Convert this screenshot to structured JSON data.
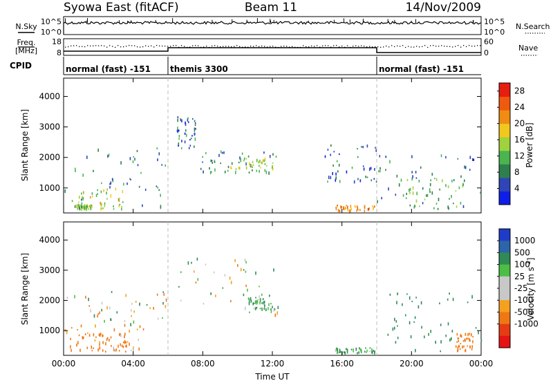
{
  "title": {
    "station": "Syowa East (fitACF)",
    "beam": "Beam 11",
    "date": "14/Nov/2009"
  },
  "panels": {
    "nsky": {
      "label": "N.Sky",
      "tick_top": "10^5",
      "tick_bottom": "10^0",
      "right_label": "N.Search",
      "right_tick_top": "10^5",
      "right_tick_bottom": "10^0",
      "right_legend_style": "dotted"
    },
    "freq": {
      "label_line1": "Freq.",
      "label_line2": "[MHz]",
      "tick_top": "18",
      "tick_bottom": "8",
      "right_label": "Nave",
      "right_tick_top": "60",
      "right_tick_bottom": "0",
      "right_legend_style": "dotted"
    },
    "cpid": {
      "label": "CPID",
      "segments": [
        {
          "name": "normal (fast) -151",
          "start_hour": 0,
          "end_hour": 6
        },
        {
          "name": "themis 3300",
          "start_hour": 6,
          "end_hour": 18
        },
        {
          "name": "normal (fast) -151",
          "start_hour": 18,
          "end_hour": 24
        }
      ]
    }
  },
  "chart_data": [
    {
      "type": "heatmap",
      "quantity": "power",
      "ylabel": "Slant Range [km]",
      "xlabel": "",
      "x_range_hours": [
        0,
        24
      ],
      "ylim": [
        180,
        4600
      ],
      "yticks": [
        1000,
        2000,
        3000,
        4000
      ],
      "xticks_hours": [
        0,
        4,
        8,
        12,
        16,
        20,
        24
      ],
      "colorbar": {
        "label": "Power [dB]",
        "range": [
          0,
          30
        ],
        "ticks": [
          "4",
          "8",
          "12",
          "16",
          "20",
          "24",
          "28"
        ],
        "colors": [
          "#0f1ee6",
          "#2f45b6",
          "#2f7f4e",
          "#49b450",
          "#9fd23c",
          "#f0c81e",
          "#f08c14",
          "#f05a0f",
          "#e61e0f"
        ]
      },
      "regions": [
        {
          "t0": 0.0,
          "t1": 6.0,
          "r0": 300,
          "r1": 2300,
          "value": 8
        },
        {
          "t0": 0.8,
          "t1": 3.6,
          "r0": 300,
          "r1": 1000,
          "value": 16
        },
        {
          "t0": 0.6,
          "t1": 1.6,
          "r0": 300,
          "r1": 450,
          "value": 14
        },
        {
          "t0": 6.5,
          "t1": 7.6,
          "r0": 2300,
          "r1": 3400,
          "value": 6
        },
        {
          "t0": 7.8,
          "t1": 12.3,
          "r0": 1500,
          "r1": 2200,
          "value": 8
        },
        {
          "t0": 9.4,
          "t1": 12.0,
          "r0": 1550,
          "r1": 2000,
          "value": 14
        },
        {
          "t0": 14.8,
          "t1": 18.0,
          "r0": 1200,
          "r1": 2400,
          "value": 6
        },
        {
          "t0": 15.6,
          "t1": 17.9,
          "r0": 250,
          "r1": 420,
          "value": 22
        },
        {
          "t0": 18.0,
          "t1": 24.0,
          "r0": 300,
          "r1": 2300,
          "value": 8
        },
        {
          "t0": 19.5,
          "t1": 23.0,
          "r0": 300,
          "r1": 1300,
          "value": 12
        }
      ]
    },
    {
      "type": "heatmap",
      "quantity": "velocity",
      "ylabel": "Slant Range [km]",
      "xlabel": "Time UT",
      "x_range_hours": [
        0,
        24
      ],
      "ylim": [
        180,
        4600
      ],
      "yticks": [
        1000,
        2000,
        3000,
        4000
      ],
      "xticks_hours": [
        0,
        4,
        8,
        12,
        16,
        20,
        24
      ],
      "xtick_labels": [
        "00:00",
        "04:00",
        "08:00",
        "12:00",
        "16:00",
        "20:00",
        "00:00"
      ],
      "colorbar": {
        "label": "Velocity [m s^-1]",
        "ticks": [
          "1000",
          "500",
          "100",
          "25",
          "-25",
          "-100",
          "-500",
          "-1000"
        ],
        "colors": [
          "#1e3cc8",
          "#2d64aa",
          "#2f8a55",
          "#4cbe46",
          "#c8c8c8",
          "#c8c8c8",
          "#f5a01e",
          "#f07814",
          "#e63c14",
          "#e61414"
        ]
      },
      "regions": [
        {
          "t0": 0.0,
          "t1": 4.8,
          "r0": 300,
          "r1": 1200,
          "value": -150
        },
        {
          "t0": 0.5,
          "t1": 3.6,
          "r0": 300,
          "r1": 900,
          "value": -300
        },
        {
          "t0": 0.0,
          "t1": 6.0,
          "r0": 1200,
          "r1": 2300,
          "value": 0
        },
        {
          "t0": 6.5,
          "t1": 12.3,
          "r0": 1500,
          "r1": 3400,
          "value": 0
        },
        {
          "t0": 10.5,
          "t1": 12.0,
          "r0": 1700,
          "r1": 2200,
          "value": 150
        },
        {
          "t0": 15.6,
          "t1": 17.9,
          "r0": 250,
          "r1": 420,
          "value": 150
        },
        {
          "t0": 18.0,
          "t1": 24.0,
          "r0": 300,
          "r1": 2300,
          "value": 300
        },
        {
          "t0": 22.5,
          "t1": 23.5,
          "r0": 300,
          "r1": 900,
          "value": -300
        }
      ]
    }
  ]
}
